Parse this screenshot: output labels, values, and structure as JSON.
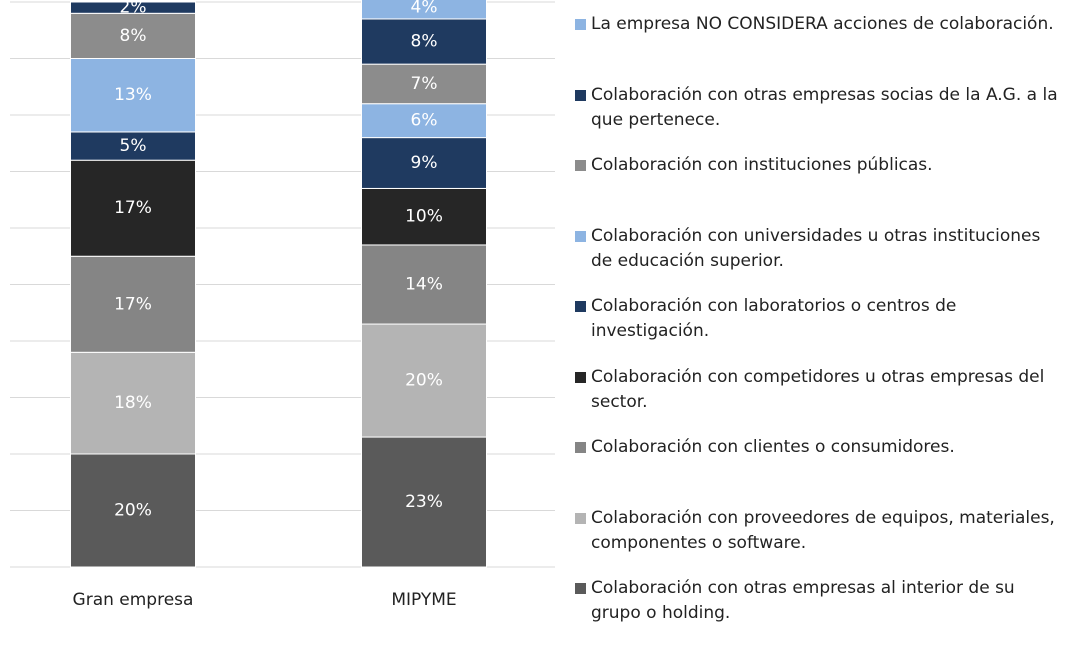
{
  "chart_data": {
    "type": "stacked_bar",
    "categories": [
      "Gran empresa",
      "MIPYME"
    ],
    "ylim": [
      0,
      100
    ],
    "yticks": [
      0,
      10,
      20,
      30,
      40,
      50,
      60,
      70,
      80,
      90,
      100
    ],
    "grid": true,
    "series": [
      {
        "name": "Colaboración con otras empresas al interior de su grupo o holding.",
        "color": "#5a5a5a",
        "values": [
          20,
          23
        ],
        "value_labels": [
          "20%",
          "23%"
        ]
      },
      {
        "name": "Colaboración con proveedores de equipos, materiales, componentes o software.",
        "color": "#b4b4b4",
        "values": [
          18,
          20
        ],
        "value_labels": [
          "18%",
          "20%"
        ]
      },
      {
        "name": "Colaboración con clientes o consumidores.",
        "color": "#858585",
        "values": [
          17,
          14
        ],
        "value_labels": [
          "17%",
          "14%"
        ]
      },
      {
        "name": "Colaboración con competidores u otras empresas del sector.",
        "color": "#262626",
        "values": [
          17,
          10
        ],
        "value_labels": [
          "17%",
          "10%"
        ]
      },
      {
        "name": "Colaboración con laboratorios o centros de investigación.",
        "color": "#1f3a60",
        "values": [
          5,
          9
        ],
        "value_labels": [
          "5%",
          "9%"
        ]
      },
      {
        "name": "Colaboración con universidades u otras instituciones de educación superior.",
        "color": "#8db4e2",
        "values": [
          13,
          6
        ],
        "value_labels": [
          "13%",
          "6%"
        ]
      },
      {
        "name": "Colaboración con instituciones públicas.",
        "color": "#8c8c8c",
        "values": [
          8,
          7
        ],
        "value_labels": [
          "8%",
          "7%"
        ]
      },
      {
        "name": "Colaboración con otras empresas socias de la A.G. a la que pertenece.",
        "color": "#1f3a60",
        "values": [
          2,
          8
        ],
        "value_labels": [
          "2%",
          "8%"
        ]
      },
      {
        "name": "La empresa NO CONSIDERA acciones de colaboración.",
        "color": "#8db4e2",
        "values": [
          null,
          4
        ],
        "value_labels": [
          null,
          "4%"
        ]
      }
    ]
  }
}
